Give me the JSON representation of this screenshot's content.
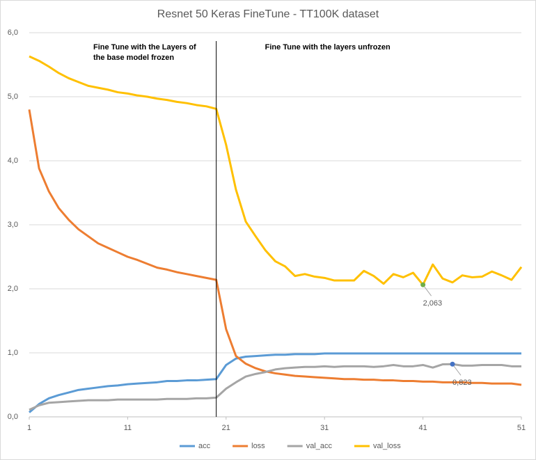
{
  "chart_data": {
    "type": "line",
    "title": "Resnet 50 Keras FineTune - TT100K dataset",
    "x": [
      1,
      2,
      3,
      4,
      5,
      6,
      7,
      8,
      9,
      10,
      11,
      12,
      13,
      14,
      15,
      16,
      17,
      18,
      19,
      20,
      21,
      22,
      23,
      24,
      25,
      26,
      27,
      28,
      29,
      30,
      31,
      32,
      33,
      34,
      35,
      36,
      37,
      38,
      39,
      40,
      41,
      42,
      43,
      44,
      45,
      46,
      47,
      48,
      49,
      50,
      51
    ],
    "series": [
      {
        "name": "acc",
        "color": "#5b9bd5",
        "values": [
          0.07,
          0.2,
          0.29,
          0.34,
          0.38,
          0.42,
          0.44,
          0.46,
          0.48,
          0.49,
          0.51,
          0.52,
          0.53,
          0.54,
          0.56,
          0.56,
          0.57,
          0.57,
          0.58,
          0.59,
          0.81,
          0.91,
          0.94,
          0.95,
          0.96,
          0.97,
          0.97,
          0.98,
          0.98,
          0.98,
          0.99,
          0.99,
          0.99,
          0.99,
          0.99,
          0.99,
          0.99,
          0.99,
          0.99,
          0.99,
          0.99,
          0.99,
          0.99,
          0.99,
          0.99,
          0.99,
          0.99,
          0.99,
          0.99,
          0.99,
          0.99
        ]
      },
      {
        "name": "loss",
        "color": "#ed7d31",
        "values": [
          4.8,
          3.88,
          3.52,
          3.26,
          3.08,
          2.93,
          2.82,
          2.71,
          2.64,
          2.57,
          2.5,
          2.45,
          2.39,
          2.33,
          2.3,
          2.26,
          2.23,
          2.2,
          2.17,
          2.14,
          1.37,
          0.95,
          0.83,
          0.76,
          0.71,
          0.68,
          0.66,
          0.64,
          0.63,
          0.62,
          0.61,
          0.6,
          0.59,
          0.59,
          0.58,
          0.58,
          0.57,
          0.57,
          0.56,
          0.56,
          0.55,
          0.55,
          0.54,
          0.54,
          0.54,
          0.53,
          0.53,
          0.52,
          0.52,
          0.52,
          0.5
        ]
      },
      {
        "name": "val_acc",
        "color": "#a5a5a5",
        "values": [
          0.11,
          0.18,
          0.22,
          0.23,
          0.24,
          0.25,
          0.26,
          0.26,
          0.26,
          0.27,
          0.27,
          0.27,
          0.27,
          0.27,
          0.28,
          0.28,
          0.28,
          0.29,
          0.29,
          0.3,
          0.44,
          0.54,
          0.63,
          0.67,
          0.7,
          0.74,
          0.76,
          0.77,
          0.78,
          0.78,
          0.79,
          0.78,
          0.79,
          0.79,
          0.79,
          0.78,
          0.79,
          0.81,
          0.79,
          0.79,
          0.81,
          0.77,
          0.82,
          0.823,
          0.8,
          0.8,
          0.81,
          0.81,
          0.81,
          0.79,
          0.79
        ]
      },
      {
        "name": "val_loss",
        "color": "#ffc000",
        "values": [
          5.63,
          5.56,
          5.47,
          5.37,
          5.29,
          5.23,
          5.17,
          5.14,
          5.11,
          5.07,
          5.05,
          5.02,
          5.0,
          4.97,
          4.95,
          4.92,
          4.9,
          4.87,
          4.85,
          4.81,
          4.25,
          3.55,
          3.05,
          2.82,
          2.6,
          2.43,
          2.35,
          2.2,
          2.23,
          2.19,
          2.17,
          2.13,
          2.13,
          2.13,
          2.28,
          2.2,
          2.08,
          2.23,
          2.18,
          2.25,
          2.063,
          2.38,
          2.16,
          2.1,
          2.21,
          2.18,
          2.19,
          2.27,
          2.21,
          2.14,
          2.34
        ]
      }
    ],
    "xlim": [
      1,
      51
    ],
    "xticks": [
      1,
      11,
      21,
      31,
      41,
      51
    ],
    "ylim": [
      0,
      6
    ],
    "yticks": [
      {
        "value": 0,
        "label": "0,0"
      },
      {
        "value": 1,
        "label": "1,0"
      },
      {
        "value": 2,
        "label": "2,0"
      },
      {
        "value": 3,
        "label": "3,0"
      },
      {
        "value": 4,
        "label": "4,0"
      },
      {
        "value": 5,
        "label": "5,0"
      },
      {
        "value": 6,
        "label": "6,0"
      }
    ],
    "grid": true,
    "legend": "bottom",
    "divider_x": 20,
    "notes": [
      {
        "lines": [
          "Fine Tune with the Layers of",
          "the base model frozen"
        ]
      },
      {
        "lines": [
          "Fine Tune with the layers unfrozen"
        ]
      }
    ],
    "annotations": [
      {
        "x": 41,
        "y": 2.063,
        "label": "2,063",
        "color": "#70ad47"
      },
      {
        "x": 44,
        "y": 0.823,
        "label": "0,823",
        "color": "#4472c4"
      }
    ]
  }
}
